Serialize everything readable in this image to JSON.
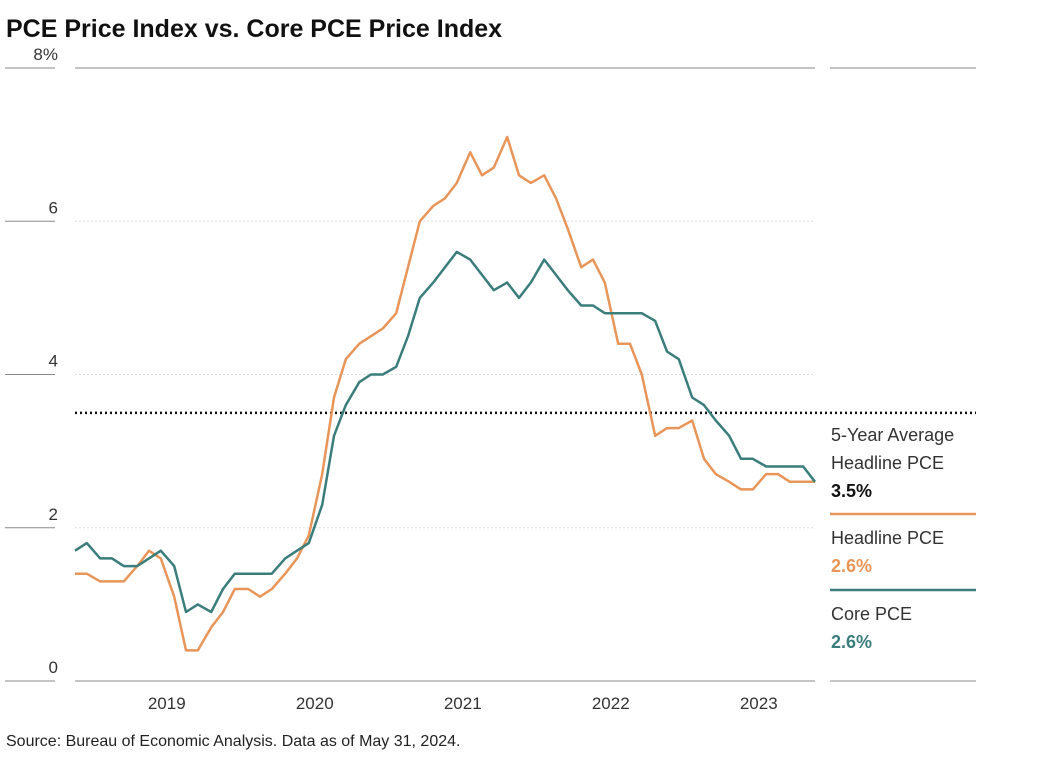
{
  "chart_data": {
    "type": "line",
    "title": "PCE Price Index vs. Core PCE Price Index",
    "source": "Source: Bureau of Economic Analysis. Data as of May 31, 2024.",
    "x": [
      2018.38,
      2018.46,
      2018.55,
      2018.63,
      2018.71,
      2018.8,
      2018.88,
      2018.96,
      2019.05,
      2019.13,
      2019.21,
      2019.3,
      2019.38,
      2019.46,
      2019.55,
      2019.63,
      2019.71,
      2019.8,
      2019.88,
      2019.96,
      2020.05,
      2020.13,
      2020.21,
      2020.3,
      2020.38,
      2020.46,
      2020.55,
      2020.63,
      2020.71,
      2020.8,
      2020.88,
      2020.96,
      2021.05,
      2021.13,
      2021.21,
      2021.3,
      2021.38,
      2021.46,
      2021.55,
      2021.63,
      2021.71,
      2021.8,
      2021.88,
      2021.96,
      2022.05,
      2022.13,
      2022.21,
      2022.3,
      2022.38,
      2022.46,
      2022.55,
      2022.63,
      2022.71,
      2022.8,
      2022.88,
      2022.96,
      2023.05,
      2023.13,
      2023.21,
      2023.3,
      2023.38
    ],
    "series": [
      {
        "name": "Headline PCE",
        "color": "#e8955a",
        "latest_label": "2.6%",
        "values": [
          1.4,
          1.4,
          1.3,
          1.3,
          1.3,
          1.5,
          1.7,
          1.6,
          1.1,
          0.4,
          0.4,
          0.7,
          0.9,
          1.2,
          1.2,
          1.1,
          1.2,
          1.4,
          1.6,
          1.9,
          2.7,
          3.7,
          4.2,
          4.4,
          4.5,
          4.6,
          4.8,
          5.4,
          6.0,
          6.2,
          6.3,
          6.5,
          6.9,
          6.6,
          6.7,
          7.1,
          6.6,
          6.5,
          6.6,
          6.3,
          5.9,
          5.4,
          5.5,
          5.2,
          4.4,
          4.4,
          4.0,
          3.2,
          3.3,
          3.3,
          3.4,
          2.9,
          2.7,
          2.6,
          2.5,
          2.5,
          2.7,
          2.7,
          2.6,
          2.6,
          2.6
        ]
      },
      {
        "name": "Core PCE",
        "color": "#3a7d7b",
        "latest_label": "2.6%",
        "values": [
          1.7,
          1.8,
          1.6,
          1.6,
          1.5,
          1.5,
          1.6,
          1.7,
          1.5,
          0.9,
          1.0,
          0.9,
          1.2,
          1.4,
          1.4,
          1.4,
          1.4,
          1.6,
          1.7,
          1.8,
          2.3,
          3.2,
          3.6,
          3.9,
          4.0,
          4.0,
          4.1,
          4.5,
          5.0,
          5.2,
          5.4,
          5.6,
          5.5,
          5.3,
          5.1,
          5.2,
          5.0,
          5.2,
          5.5,
          5.3,
          5.1,
          4.9,
          4.9,
          4.8,
          4.8,
          4.8,
          4.8,
          4.7,
          4.3,
          4.2,
          3.7,
          3.6,
          3.4,
          3.2,
          2.9,
          2.9,
          2.8,
          2.8,
          2.8,
          2.8,
          2.6
        ]
      }
    ],
    "reference": {
      "name": "5-Year Average Headline PCE",
      "value": 3.5,
      "label": "3.5%",
      "color": "#111111"
    },
    "xlim": [
      2018.38,
      2023.38
    ],
    "xticks": [
      2019,
      2020,
      2021,
      2022,
      2023
    ],
    "ylim": [
      0,
      8
    ],
    "yticks": [
      0,
      2,
      4,
      6,
      {
        "value": 8,
        "label": "8%"
      }
    ],
    "grid": true
  }
}
